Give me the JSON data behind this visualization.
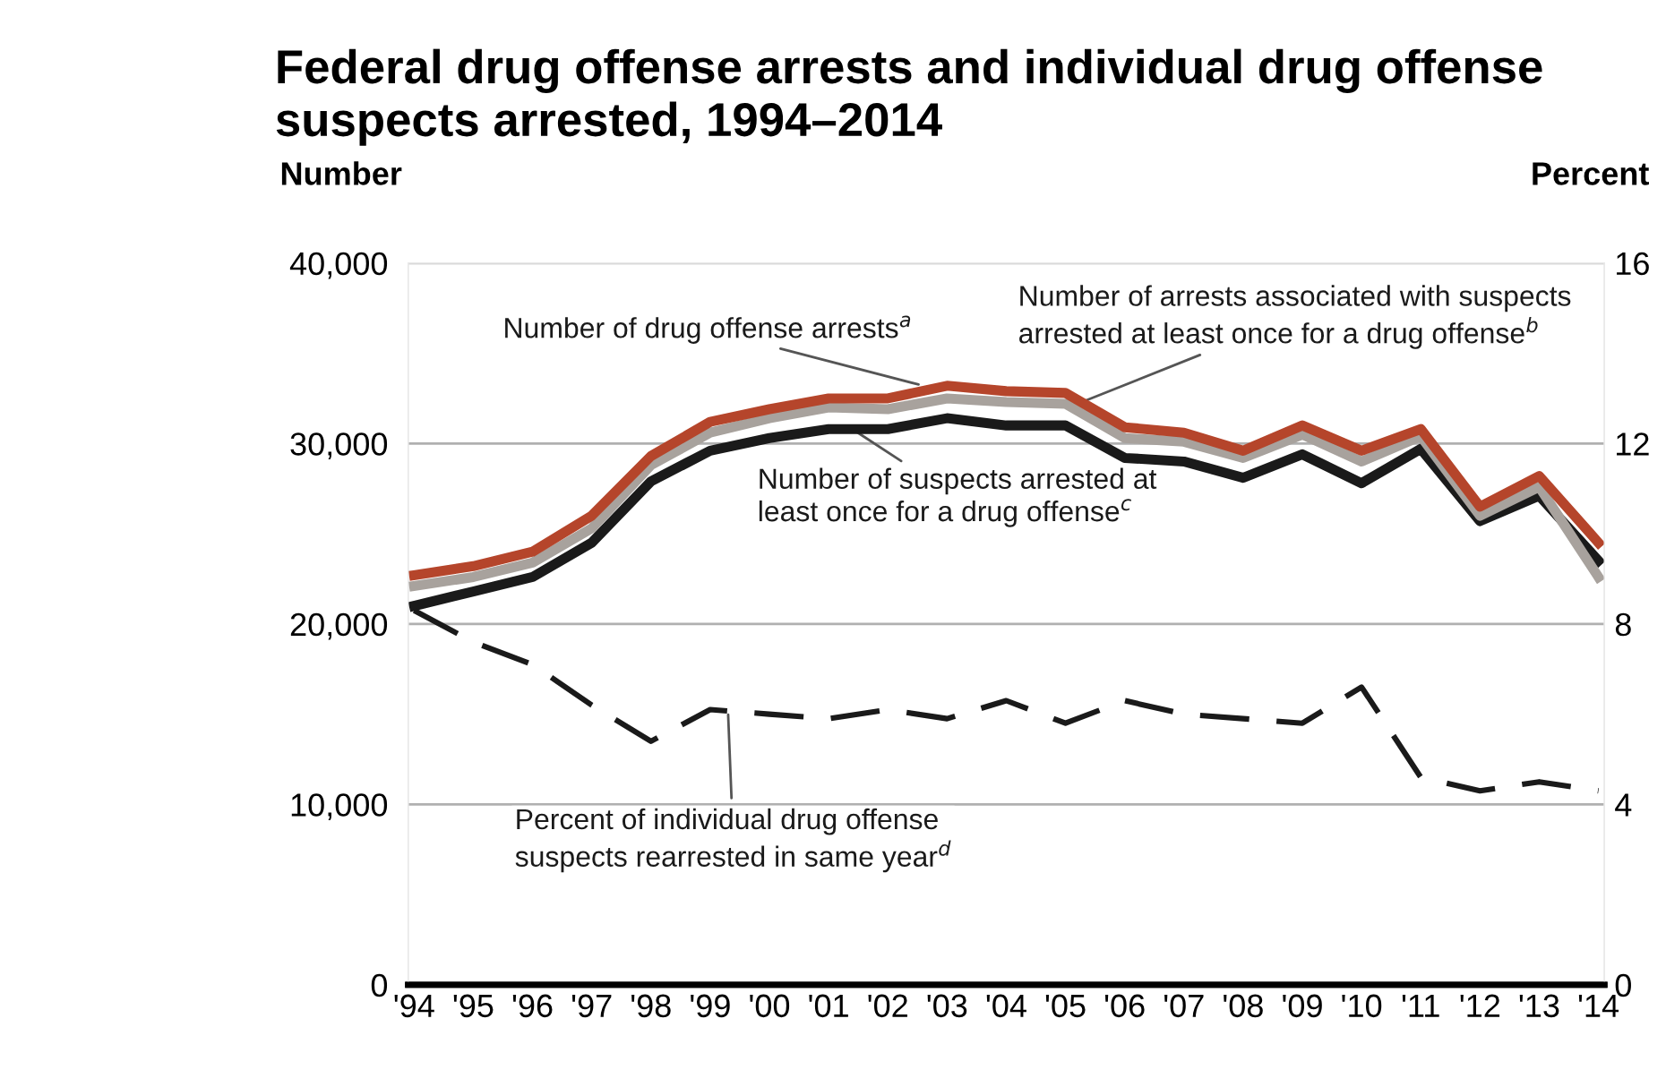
{
  "chart_data": {
    "type": "line",
    "title": "Federal drug offense arrests and individual drug offense\nsuspects arrested, 1994–2014",
    "ylabel": "Number",
    "y2label": "Percent",
    "categories": [
      "'94",
      "'95",
      "'96",
      "'97",
      "'98",
      "'99",
      "'00",
      "'01",
      "'02",
      "'03",
      "'04",
      "'05",
      "'06",
      "'07",
      "'08",
      "'09",
      "'10",
      "'11",
      "'12",
      "'13",
      "'14"
    ],
    "series": [
      {
        "name": "Number of drug offense arrests$^{a}$",
        "color": "#b5452b",
        "values": [
          22700,
          23200,
          24000,
          26000,
          29300,
          31200,
          31900,
          32500,
          32500,
          33200,
          32900,
          32800,
          30900,
          30600,
          29600,
          31000,
          29600,
          30800,
          26500,
          28200,
          24500
        ]
      },
      {
        "name": "Number of arrests associated with suspects\narrested at least once for a drug offense$^{b}$",
        "color": "#a8a29d",
        "values": [
          22100,
          22600,
          23400,
          25300,
          28800,
          30600,
          31400,
          32000,
          31900,
          32500,
          32300,
          32200,
          30300,
          30100,
          29200,
          30500,
          29000,
          30400,
          26000,
          27600,
          22600
        ]
      },
      {
        "name": "Number of suspects arrested at\nleast once for a drug offense$^{c}$",
        "color": "#1a1a1a",
        "values": [
          21000,
          21800,
          22600,
          24500,
          27900,
          29600,
          30300,
          30800,
          30800,
          31400,
          31000,
          31000,
          29200,
          29000,
          28100,
          29400,
          27800,
          29700,
          25700,
          27100,
          23500
        ]
      },
      {
        "name": "Percent of individual drug offense\nsuspects rearrested in same year$^{d}$",
        "color": "#1a1a1a",
        "axis": "y2",
        "line_style": "dashed",
        "values": [
          8.3,
          7.6,
          7.1,
          6.2,
          5.4,
          6.1,
          6.0,
          5.9,
          6.1,
          5.9,
          6.3,
          5.8,
          6.3,
          6.0,
          5.9,
          5.8,
          6.6,
          4.6,
          4.3,
          4.5,
          4.3
        ]
      }
    ],
    "ylim": [
      0,
      40000
    ],
    "yticks": [
      {
        "value": 0,
        "label": "0"
      },
      {
        "value": 10000,
        "label": "10,000"
      },
      {
        "value": 20000,
        "label": "20,000"
      },
      {
        "value": 30000,
        "label": "30,000"
      },
      {
        "value": 40000,
        "label": "40,000"
      }
    ],
    "y2lim": [
      0,
      16
    ],
    "y2ticks": [
      0,
      4,
      8,
      12,
      16
    ],
    "grid": "y",
    "legend": false
  }
}
